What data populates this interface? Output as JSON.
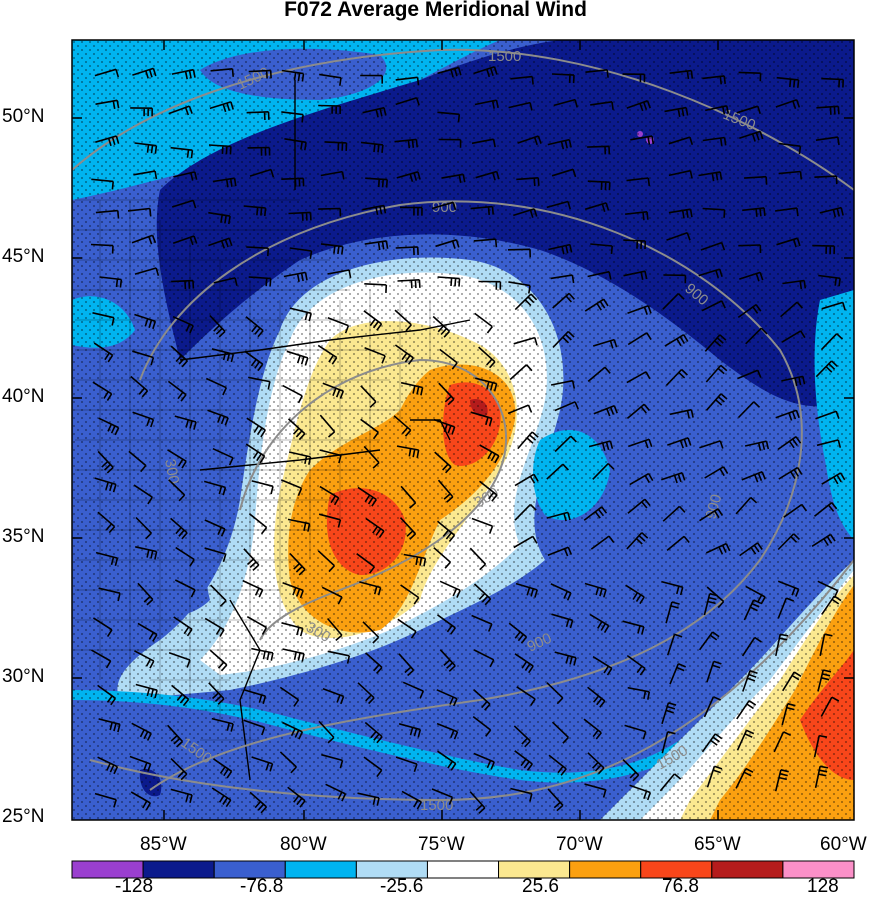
{
  "title": "F072 Average Meridional Wind",
  "lat_labels": [
    "50°N",
    "45°N",
    "40°N",
    "35°N",
    "30°N",
    "25°N"
  ],
  "lon_labels": [
    "85°W",
    "80°W",
    "75°W",
    "70°W",
    "65°W",
    "60°W"
  ],
  "contour_labels": [
    "1500",
    "1500",
    "1500",
    "900",
    "900",
    "900",
    "300",
    "300",
    "300",
    "900",
    "1500",
    "1500",
    "1500"
  ],
  "colorbar": {
    "colors": [
      "#9a3fcf",
      "#0b1a8c",
      "#3a5fcf",
      "#00b4f0",
      "#b0dcf5",
      "#ffffff",
      "#fbe890",
      "#fba010",
      "#f8461a",
      "#b51c1c",
      "#fb90c8"
    ],
    "labels": [
      "-128",
      "-76.8",
      "-25.6",
      "25.6",
      "76.8",
      "128"
    ]
  }
}
